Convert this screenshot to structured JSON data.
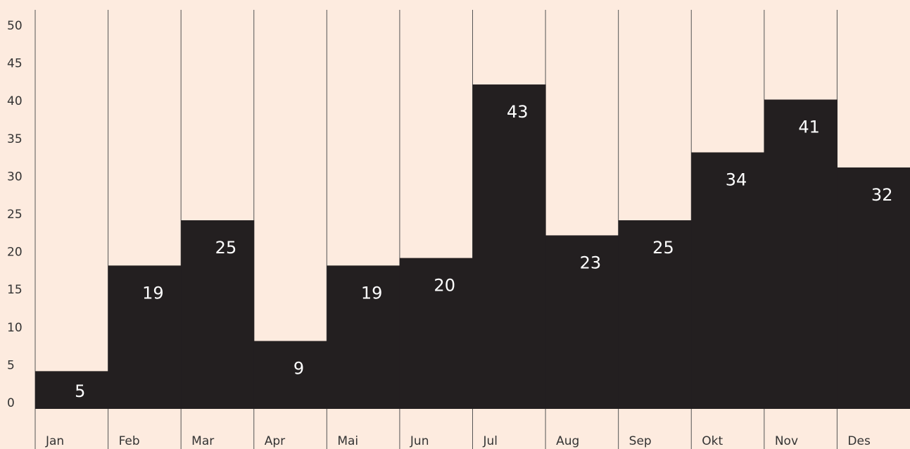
{
  "chart_data": {
    "type": "bar",
    "categories": [
      "Jan",
      "Feb",
      "Mar",
      "Apr",
      "Mai",
      "Jun",
      "Jul",
      "Aug",
      "Sep",
      "Okt",
      "Nov",
      "Des"
    ],
    "values": [
      5,
      19,
      25,
      9,
      19,
      20,
      43,
      23,
      25,
      34,
      41,
      32
    ],
    "color": "#231f20",
    "ylim": [
      0,
      50
    ],
    "yticks": [
      0,
      5,
      10,
      15,
      20,
      25,
      30,
      35,
      40,
      45,
      50
    ]
  }
}
